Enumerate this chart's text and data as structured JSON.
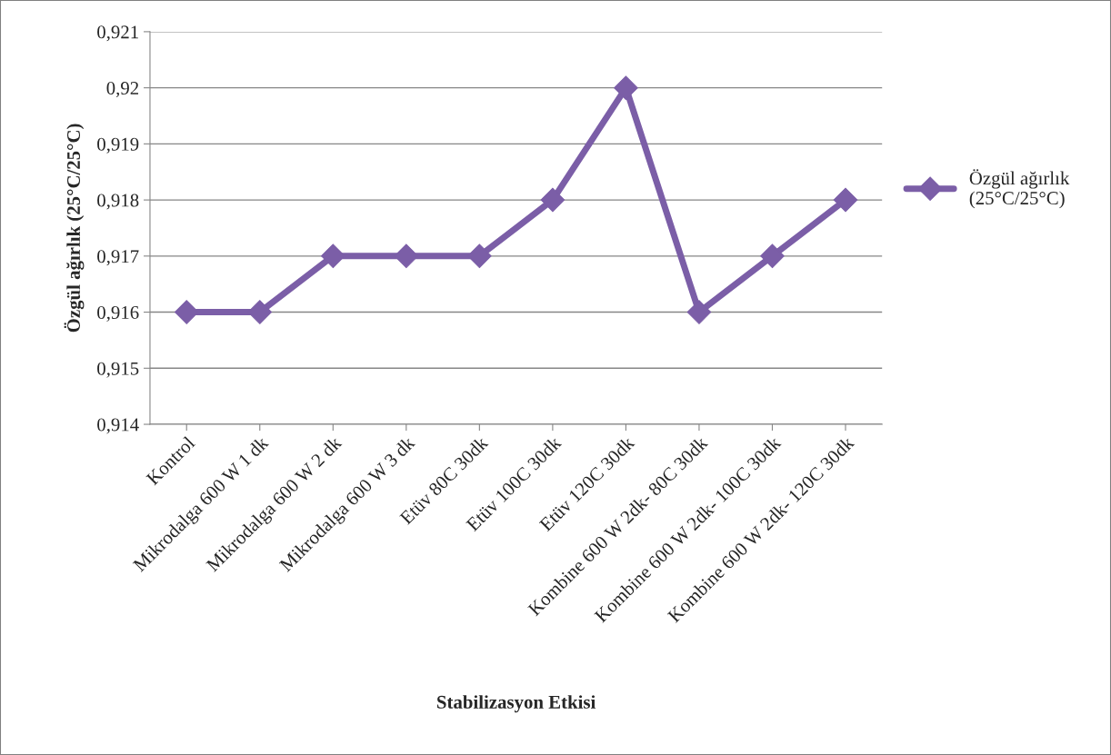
{
  "chart_data": {
    "type": "line",
    "xlabel": "Stabilizasyon Etkisi",
    "ylabel": "Özgül ağırlık (25°C/25°C)",
    "categories": [
      "Kontrol",
      "Mikrodalga 600 W 1 dk",
      "Mikrodalga 600 W 2 dk",
      "Mikrodalga 600 W 3 dk",
      "Etüv 80C 30dk",
      "Etüv 100C 30dk",
      "Etüv 120C 30dk",
      "Kombine 600 W 2dk- 80C 30dk",
      "Kombine 600 W 2dk- 100C 30dk",
      "Kombine 600 W 2dk- 120C 30dk"
    ],
    "series": [
      {
        "name": "Özgül ağırlık\n(25°C/25°C)",
        "color": "#7b5ea7",
        "values": [
          0.916,
          0.916,
          0.917,
          0.917,
          0.917,
          0.918,
          0.92,
          0.916,
          0.917,
          0.918
        ]
      }
    ],
    "ylim": [
      0.914,
      0.921
    ],
    "yticks": [
      {
        "value": 0.914,
        "label": "0,914"
      },
      {
        "value": 0.915,
        "label": "0,915"
      },
      {
        "value": 0.916,
        "label": "0,916"
      },
      {
        "value": 0.917,
        "label": "0,917"
      },
      {
        "value": 0.918,
        "label": "0,918"
      },
      {
        "value": 0.919,
        "label": "0,919"
      },
      {
        "value": 0.92,
        "label": "0,92"
      },
      {
        "value": 0.921,
        "label": "0,921"
      }
    ],
    "grid": "y",
    "legend": "right",
    "marker": "diamond",
    "line_style": "solid"
  }
}
